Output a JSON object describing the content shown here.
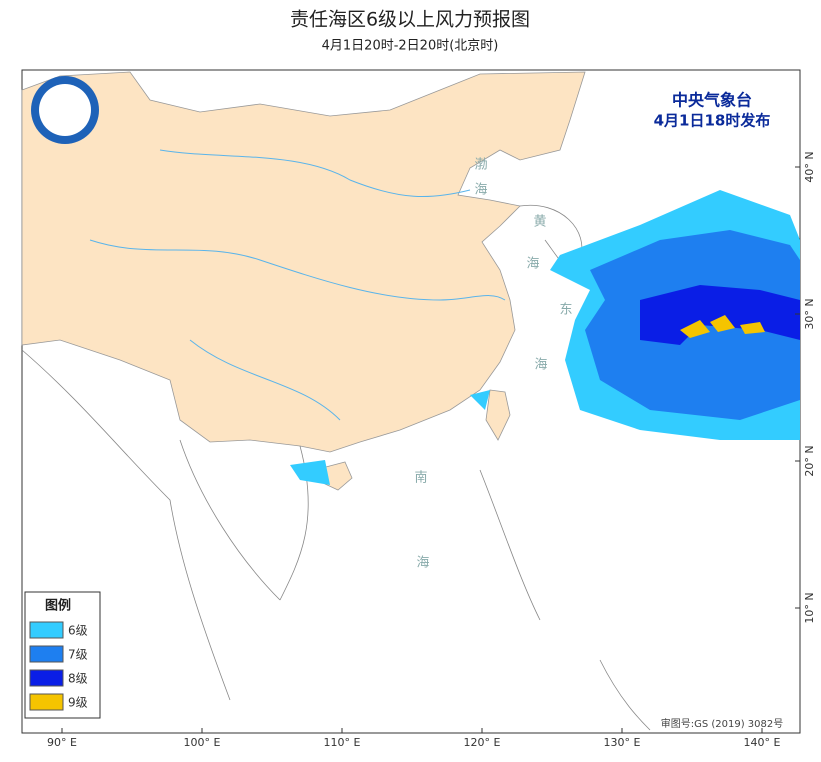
{
  "header": {
    "title": "责任海区6级以上风力预报图",
    "subtitle": "4月1日20时-2日20时(北京时)"
  },
  "issuer": {
    "name": "中央气象台",
    "issued": "4月1日18时发布"
  },
  "legend": {
    "title": "图例",
    "items": [
      {
        "label": "6级",
        "color": "#33ccff"
      },
      {
        "label": "7级",
        "color": "#1e7ff0"
      },
      {
        "label": "8级",
        "color": "#0a1ee6"
      },
      {
        "label": "9级",
        "color": "#f5c400"
      }
    ]
  },
  "sea_labels": [
    "渤",
    "海",
    "黄",
    "海",
    "东",
    "海",
    "南",
    "海"
  ],
  "lon_labels": [
    "90° E",
    "100° E",
    "110° E",
    "120° E",
    "130° E",
    "140° E"
  ],
  "lat_labels": [
    "40° N",
    "30° N",
    "20° N",
    "10° N"
  ],
  "approval": "审图号:GS (2019) 3082号"
}
